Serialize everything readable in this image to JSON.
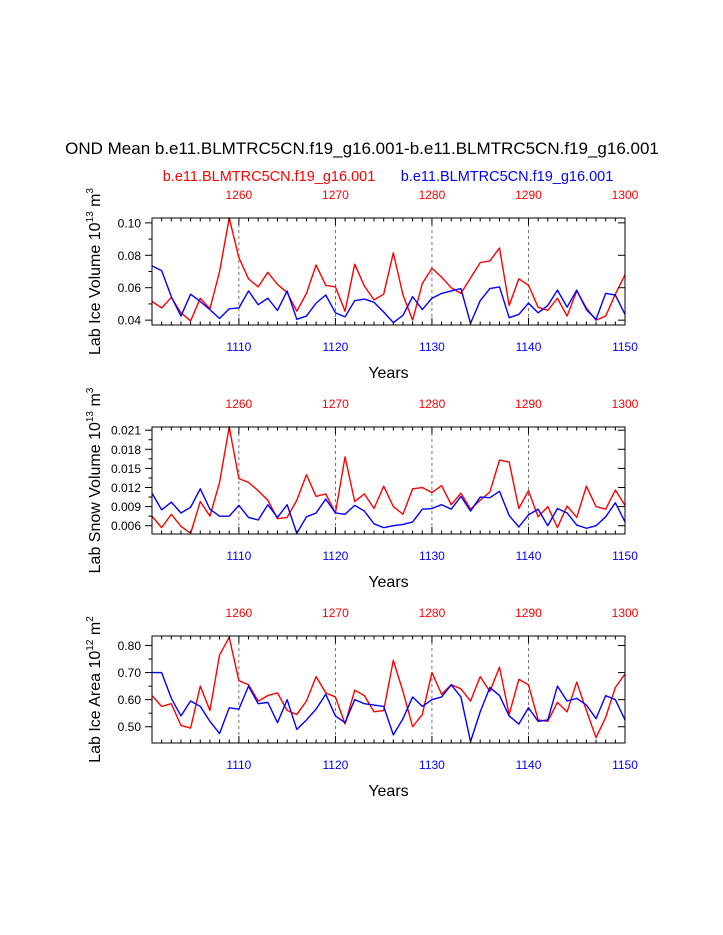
{
  "title": "OND Mean b.e11.BLMTRC5CN.f19_g16.001-b.e11.BLMTRC5CN.f19_g16.001",
  "legend_red": "b.e11.BLMTRC5CN.f19_g16.001",
  "legend_blue": "b.e11.BLMTRC5CN.f19_g16.001",
  "colors": {
    "red": "#ff0000",
    "blue": "#0000ff",
    "axis": "#000000",
    "grid": "#555555"
  },
  "chart_data": [
    {
      "type": "line",
      "ylabel": "Lab Ice Volume 10^13 m^3",
      "ylabel_base": "Lab Ice Volume 10",
      "ylabel_exp": "13",
      "ylabel_unit": " m",
      "ylabel_unit_exp": "3",
      "xlabel": "Years",
      "bottom_axis": {
        "range": [
          1101,
          1150
        ],
        "ticks": [
          1110,
          1120,
          1130,
          1140,
          1150
        ],
        "tick_labels": [
          "1110",
          "1120",
          "1130",
          "1140",
          "1150"
        ]
      },
      "top_axis": {
        "range": [
          1251,
          1300
        ],
        "ticks": [
          1260,
          1270,
          1280,
          1290,
          1300
        ],
        "tick_labels": [
          "1260",
          "1270",
          "1280",
          "1290",
          "1300"
        ]
      },
      "ylim": [
        0.037,
        0.103
      ],
      "yticks": [
        0.04,
        0.06,
        0.08,
        0.1
      ],
      "ytick_labels": [
        "0.04",
        "0.06",
        "0.08",
        "0.10"
      ],
      "series": [
        {
          "name": "b.e11.BLMTRC5CN.f19_g16.001 (top axis)",
          "color": "#ff0000",
          "values": [
            0.0515,
            0.0475,
            0.054,
            0.0445,
            0.0395,
            0.0535,
            0.047,
            0.07,
            0.103,
            0.0785,
            0.0655,
            0.0605,
            0.0695,
            0.062,
            0.057,
            0.0455,
            0.0565,
            0.074,
            0.0615,
            0.0605,
            0.0455,
            0.0745,
            0.061,
            0.0525,
            0.056,
            0.0815,
            0.0555,
            0.04,
            0.0625,
            0.072,
            0.0665,
            0.06,
            0.0565,
            0.066,
            0.0755,
            0.0765,
            0.0845,
            0.049,
            0.0655,
            0.0615,
            0.048,
            0.046,
            0.0535,
            0.0425,
            0.058,
            0.0475,
            0.04,
            0.0425,
            0.056,
            0.068
          ]
        },
        {
          "name": "b.e11.BLMTRC5CN.f19_g16.001 (bottom axis)",
          "color": "#0000ff",
          "values": [
            0.0735,
            0.0705,
            0.0545,
            0.0425,
            0.056,
            0.0515,
            0.0465,
            0.041,
            0.047,
            0.0475,
            0.058,
            0.0495,
            0.0535,
            0.046,
            0.058,
            0.0405,
            0.0425,
            0.0505,
            0.0555,
            0.0445,
            0.042,
            0.052,
            0.053,
            0.051,
            0.045,
            0.0385,
            0.043,
            0.0545,
            0.0465,
            0.0535,
            0.0565,
            0.058,
            0.0595,
            0.038,
            0.052,
            0.0595,
            0.0605,
            0.0415,
            0.0435,
            0.0505,
            0.0445,
            0.049,
            0.0585,
            0.048,
            0.0585,
            0.0465,
            0.0405,
            0.0565,
            0.0555,
            0.0435
          ]
        }
      ]
    },
    {
      "type": "line",
      "ylabel": "Lab Snow Volume 10^13 m^3",
      "ylabel_base": "Lab Snow Volume 10",
      "ylabel_exp": "13",
      "ylabel_unit": " m",
      "ylabel_unit_exp": "3",
      "xlabel": "Years",
      "bottom_axis": {
        "range": [
          1101,
          1150
        ],
        "ticks": [
          1110,
          1120,
          1130,
          1140,
          1150
        ],
        "tick_labels": [
          "1110",
          "1120",
          "1130",
          "1140",
          "1150"
        ]
      },
      "top_axis": {
        "range": [
          1251,
          1300
        ],
        "ticks": [
          1260,
          1270,
          1280,
          1290,
          1300
        ],
        "tick_labels": [
          "1260",
          "1270",
          "1280",
          "1290",
          "1300"
        ]
      },
      "ylim": [
        0.0047,
        0.0215
      ],
      "yticks": [
        0.006,
        0.009,
        0.012,
        0.015,
        0.018,
        0.021
      ],
      "ytick_labels": [
        "0.006",
        "0.009",
        "0.012",
        "0.015",
        "0.018",
        "0.021"
      ],
      "series": [
        {
          "name": "b.e11.BLMTRC5CN.f19_g16.001 (top axis)",
          "color": "#ff0000",
          "values": [
            0.0075,
            0.0057,
            0.0078,
            0.0059,
            0.0048,
            0.0098,
            0.0075,
            0.0128,
            0.0215,
            0.0134,
            0.0128,
            0.0115,
            0.01,
            0.0071,
            0.0073,
            0.01,
            0.014,
            0.0106,
            0.011,
            0.008,
            0.0168,
            0.0098,
            0.011,
            0.0087,
            0.0122,
            0.009,
            0.0078,
            0.0118,
            0.012,
            0.0112,
            0.0123,
            0.0093,
            0.0111,
            0.0086,
            0.01,
            0.0113,
            0.0163,
            0.016,
            0.0087,
            0.0115,
            0.0074,
            0.009,
            0.0057,
            0.0091,
            0.0073,
            0.0122,
            0.009,
            0.0086,
            0.0116,
            0.0092
          ]
        },
        {
          "name": "b.e11.BLMTRC5CN.f19_g16.001 (bottom axis)",
          "color": "#0000ff",
          "values": [
            0.0111,
            0.0085,
            0.0097,
            0.008,
            0.0089,
            0.0118,
            0.0086,
            0.0075,
            0.0075,
            0.0092,
            0.0073,
            0.0069,
            0.0093,
            0.0073,
            0.0093,
            0.0048,
            0.0074,
            0.008,
            0.0102,
            0.008,
            0.0078,
            0.0092,
            0.0083,
            0.0063,
            0.0057,
            0.006,
            0.0062,
            0.0066,
            0.0086,
            0.0087,
            0.0093,
            0.0086,
            0.0106,
            0.0083,
            0.0105,
            0.0104,
            0.0114,
            0.0076,
            0.0058,
            0.0077,
            0.0086,
            0.006,
            0.0087,
            0.008,
            0.0061,
            0.0056,
            0.006,
            0.0074,
            0.0096,
            0.0066
          ]
        }
      ]
    },
    {
      "type": "line",
      "ylabel": "Lab Ice Area 10^12 m^2",
      "ylabel_base": "Lab Ice Area 10",
      "ylabel_exp": "12",
      "ylabel_unit": " m",
      "ylabel_unit_exp": "2",
      "xlabel": "Years",
      "bottom_axis": {
        "range": [
          1101,
          1150
        ],
        "ticks": [
          1110,
          1120,
          1130,
          1140,
          1150
        ],
        "tick_labels": [
          "1110",
          "1120",
          "1130",
          "1140",
          "1150"
        ]
      },
      "top_axis": {
        "range": [
          1251,
          1300
        ],
        "ticks": [
          1260,
          1270,
          1280,
          1290,
          1300
        ],
        "tick_labels": [
          "1260",
          "1270",
          "1280",
          "1290",
          "1300"
        ]
      },
      "ylim": [
        0.44,
        0.835
      ],
      "yticks": [
        0.5,
        0.6,
        0.7,
        0.8
      ],
      "ytick_labels": [
        "0.50",
        "0.60",
        "0.70",
        "0.80"
      ],
      "series": [
        {
          "name": "b.e11.BLMTRC5CN.f19_g16.001 (top axis)",
          "color": "#ff0000",
          "values": [
            0.615,
            0.575,
            0.585,
            0.505,
            0.495,
            0.65,
            0.56,
            0.765,
            0.83,
            0.67,
            0.655,
            0.595,
            0.615,
            0.625,
            0.56,
            0.545,
            0.595,
            0.685,
            0.625,
            0.61,
            0.51,
            0.635,
            0.615,
            0.555,
            0.56,
            0.745,
            0.63,
            0.5,
            0.545,
            0.7,
            0.62,
            0.655,
            0.64,
            0.595,
            0.685,
            0.63,
            0.72,
            0.545,
            0.675,
            0.655,
            0.525,
            0.52,
            0.59,
            0.555,
            0.665,
            0.56,
            0.46,
            0.535,
            0.645,
            0.695
          ]
        },
        {
          "name": "b.e11.BLMTRC5CN.f19_g16.001 (bottom axis)",
          "color": "#0000ff",
          "values": [
            0.7,
            0.7,
            0.605,
            0.54,
            0.595,
            0.575,
            0.52,
            0.475,
            0.57,
            0.565,
            0.65,
            0.585,
            0.59,
            0.515,
            0.6,
            0.49,
            0.525,
            0.565,
            0.62,
            0.54,
            0.515,
            0.6,
            0.585,
            0.58,
            0.575,
            0.47,
            0.53,
            0.61,
            0.575,
            0.6,
            0.61,
            0.655,
            0.61,
            0.445,
            0.555,
            0.645,
            0.615,
            0.54,
            0.51,
            0.57,
            0.52,
            0.525,
            0.65,
            0.595,
            0.605,
            0.58,
            0.53,
            0.615,
            0.6,
            0.525
          ]
        }
      ]
    }
  ]
}
